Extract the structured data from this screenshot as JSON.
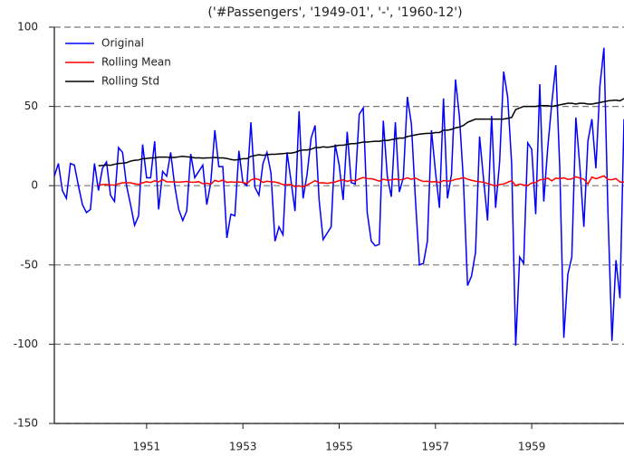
{
  "chart_data": {
    "type": "line",
    "title": "('#Passengers', '1949-01', '-', '1960-12')",
    "x": [
      1949.083,
      1949.167,
      1949.25,
      1949.333,
      1949.417,
      1949.5,
      1949.583,
      1949.667,
      1949.75,
      1949.833,
      1949.917,
      1950.0,
      1950.083,
      1950.167,
      1950.25,
      1950.333,
      1950.417,
      1950.5,
      1950.583,
      1950.667,
      1950.75,
      1950.833,
      1950.917,
      1951.0,
      1951.083,
      1951.167,
      1951.25,
      1951.333,
      1951.417,
      1951.5,
      1951.583,
      1951.667,
      1951.75,
      1951.833,
      1951.917,
      1952.0,
      1952.083,
      1952.167,
      1952.25,
      1952.333,
      1952.417,
      1952.5,
      1952.583,
      1952.667,
      1952.75,
      1952.833,
      1952.917,
      1953.0,
      1953.083,
      1953.167,
      1953.25,
      1953.333,
      1953.417,
      1953.5,
      1953.583,
      1953.667,
      1953.75,
      1953.833,
      1953.917,
      1954.0,
      1954.083,
      1954.167,
      1954.25,
      1954.333,
      1954.417,
      1954.5,
      1954.583,
      1954.667,
      1954.75,
      1954.833,
      1954.917,
      1955.0,
      1955.083,
      1955.167,
      1955.25,
      1955.333,
      1955.417,
      1955.5,
      1955.583,
      1955.667,
      1955.75,
      1955.833,
      1955.917,
      1956.0,
      1956.083,
      1956.167,
      1956.25,
      1956.333,
      1956.417,
      1956.5,
      1956.583,
      1956.667,
      1956.75,
      1956.833,
      1956.917,
      1957.0,
      1957.083,
      1957.167,
      1957.25,
      1957.333,
      1957.417,
      1957.5,
      1957.583,
      1957.667,
      1957.75,
      1957.833,
      1957.917,
      1958.0,
      1958.083,
      1958.167,
      1958.25,
      1958.333,
      1958.417,
      1958.5,
      1958.583,
      1958.667,
      1958.75,
      1958.833,
      1958.917,
      1959.0,
      1959.083,
      1959.167,
      1959.25,
      1959.333,
      1959.417,
      1959.5,
      1959.583,
      1959.667,
      1959.75,
      1959.833,
      1959.917,
      1960.0,
      1960.083,
      1960.167,
      1960.25,
      1960.333,
      1960.417,
      1960.5,
      1960.583,
      1960.667,
      1960.75,
      1960.833,
      1960.917
    ],
    "series": [
      {
        "name": "Original",
        "color": "#0000ff",
        "values": [
          6,
          14,
          -3,
          -8,
          14,
          13,
          0,
          -12,
          -17,
          -15,
          14,
          -3,
          11,
          15,
          -6,
          -10,
          24,
          21,
          0,
          -12,
          -25,
          -19,
          26,
          5,
          5,
          28,
          -15,
          9,
          6,
          21,
          0,
          -15,
          -22,
          -16,
          20,
          5,
          9,
          13,
          -12,
          2,
          35,
          12,
          12,
          -33,
          -18,
          -19,
          22,
          2,
          0,
          40,
          -1,
          -6,
          14,
          21,
          8,
          -35,
          -26,
          -31,
          21,
          3,
          -16,
          47,
          -8,
          7,
          30,
          38,
          -9,
          -34,
          -30,
          -26,
          26,
          13,
          -9,
          34,
          2,
          1,
          45,
          49,
          -17,
          -35,
          -38,
          -37,
          41,
          6,
          -7,
          40,
          -4,
          5,
          56,
          39,
          -8,
          -50,
          -49,
          -35,
          35,
          9,
          -14,
          55,
          -8,
          7,
          67,
          43,
          2,
          -63,
          -57,
          -42,
          31,
          4,
          -22,
          44,
          -14,
          15,
          72,
          56,
          14,
          -101,
          -45,
          -49,
          27,
          23,
          -18,
          64,
          -10,
          24,
          52,
          76,
          11,
          -96,
          -56,
          -45,
          43,
          12,
          -26,
          28,
          42,
          11,
          63,
          87,
          -16,
          -98,
          -47,
          -71,
          42
        ]
      },
      {
        "name": "Rolling Mean",
        "color": "#ff0000",
        "values": [
          null,
          null,
          null,
          null,
          null,
          null,
          null,
          null,
          null,
          null,
          null,
          0.25,
          0.67,
          0.75,
          0.5,
          0.33,
          1.17,
          1.83,
          1.83,
          1.83,
          1.17,
          0.83,
          1.83,
          2.5,
          2,
          3.08,
          2.33,
          3.92,
          2.42,
          2.42,
          2.42,
          2.17,
          2.42,
          2.67,
          2.17,
          2.17,
          2.5,
          1.25,
          1.5,
          0.92,
          3.33,
          2.58,
          3.58,
          2.08,
          2.42,
          2.17,
          2.33,
          2.08,
          1.33,
          3.58,
          4.5,
          3.83,
          2.08,
          2.83,
          2.5,
          2.33,
          1.67,
          0.67,
          0.58,
          0.67,
          -0.67,
          -0.08,
          -0.67,
          0.42,
          1.75,
          3.17,
          1.75,
          1.83,
          1.5,
          1.92,
          2.33,
          3.17,
          3.75,
          2.67,
          3.5,
          3,
          4.25,
          5.17,
          4.5,
          4.42,
          3.75,
          2.83,
          4.08,
          3.5,
          3.67,
          4.17,
          3.67,
          4,
          4.92,
          4.08,
          4.83,
          3.58,
          2.67,
          2.83,
          2.33,
          2.58,
          2,
          3.25,
          2.92,
          3.08,
          4,
          4.33,
          5.17,
          4.08,
          3.42,
          2.83,
          2.5,
          2.08,
          1.42,
          0.5,
          0,
          0.67,
          1.08,
          2.17,
          3.17,
          0,
          1,
          0.42,
          0.08,
          1.67,
          2,
          3.67,
          4,
          4.75,
          3.08,
          4.75,
          4.5,
          4.92,
          4,
          4.33,
          5.67,
          4.75,
          4.08,
          1.08,
          5.42,
          4.33,
          5.25,
          6.17,
          3.92,
          3.75,
          4.5,
          2.33,
          2.25
        ]
      },
      {
        "name": "Rolling Std",
        "color": "#000000",
        "values": [
          null,
          null,
          null,
          null,
          null,
          null,
          null,
          null,
          null,
          null,
          null,
          12.5,
          12.8,
          13,
          12.9,
          13.5,
          14,
          14.2,
          14.5,
          15.5,
          16,
          16.2,
          17,
          17.2,
          17.5,
          17.5,
          18,
          18,
          18,
          17.8,
          17.8,
          18.2,
          18.5,
          18.2,
          18,
          17.5,
          17.6,
          17.4,
          17.5,
          17.6,
          17.8,
          17.5,
          17.5,
          17.2,
          16.5,
          16.2,
          16.5,
          17,
          17,
          18.5,
          19,
          19.5,
          19.2,
          19.5,
          19.8,
          19.8,
          20,
          20.2,
          20.5,
          20.5,
          21,
          22,
          22.5,
          22.5,
          23,
          24,
          24,
          24.5,
          24.2,
          24.5,
          25,
          25.5,
          25.5,
          26,
          26.5,
          26.5,
          27,
          27.5,
          27.5,
          27.8,
          28,
          28,
          28.5,
          28.5,
          29,
          29.5,
          30,
          30,
          31,
          31.5,
          32,
          32.5,
          32.8,
          33,
          33,
          33.5,
          33.5,
          35,
          35,
          35.5,
          36.5,
          37,
          38,
          40,
          41,
          42,
          42,
          42,
          42,
          42,
          42,
          42,
          42,
          42.5,
          43,
          48,
          49,
          50,
          50,
          50,
          50,
          50.5,
          50.5,
          50.5,
          50,
          50.5,
          51,
          51.5,
          52,
          52,
          51.5,
          52,
          52,
          51.5,
          51.5,
          52,
          52.5,
          53,
          53.5,
          53.8,
          54,
          53.5,
          55
        ]
      }
    ],
    "xlim": [
      1949.083,
      1960.917
    ],
    "xticks": [
      1951,
      1953,
      1955,
      1957,
      1959
    ],
    "ylim": [
      -150,
      100
    ],
    "yticks": [
      -150,
      -100,
      -50,
      0,
      50,
      100
    ],
    "grid": true,
    "legend": "upper left"
  }
}
